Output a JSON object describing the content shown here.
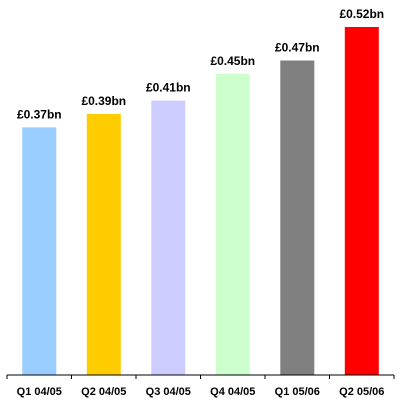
{
  "chart_data": {
    "type": "bar",
    "title": "",
    "xlabel": "",
    "ylabel": "",
    "categories": [
      "Q1 04/05",
      "Q2 04/05",
      "Q3 04/05",
      "Q4 04/05",
      "Q1 05/06",
      "Q2 05/06"
    ],
    "values": [
      0.37,
      0.39,
      0.41,
      0.45,
      0.47,
      0.52
    ],
    "value_labels": [
      "£0.37bn",
      "£0.39bn",
      "£0.41bn",
      "£0.45bn",
      "£0.47bn",
      "£0.52bn"
    ],
    "unit": "£bn",
    "ylim": [
      0,
      0.52
    ],
    "grid": false,
    "legend": "none",
    "bar_colors": [
      "#99CCFF",
      "#FFCC00",
      "#CCCCFF",
      "#CCFFCC",
      "#808080",
      "#FF0000"
    ],
    "axis_color": "#000000"
  }
}
